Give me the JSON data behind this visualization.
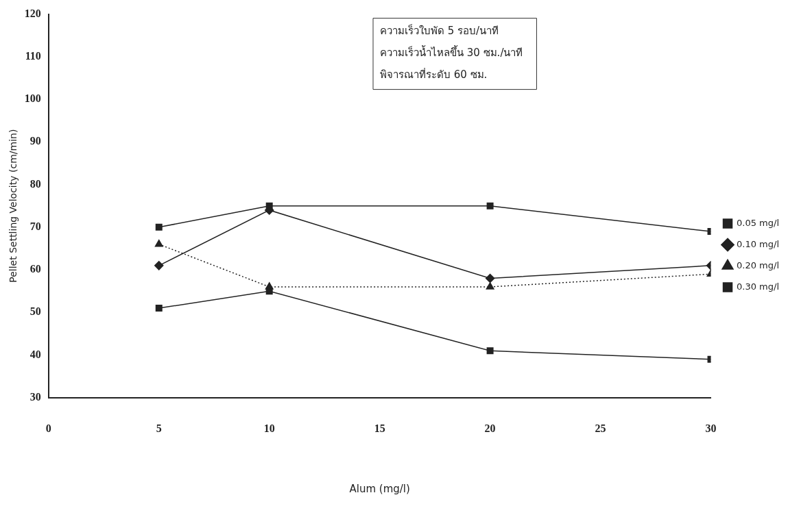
{
  "chart_data": {
    "type": "line",
    "xlabel": "Alum (mg/l)",
    "ylabel": "Pellet Settling Velocity (cm/min)",
    "x": [
      5,
      10,
      20,
      30
    ],
    "series": [
      {
        "name": "0.05 mg/l",
        "color": "#222222",
        "marker": "square",
        "line_style": "solid",
        "values": [
          51,
          55,
          41,
          39
        ]
      },
      {
        "name": "0.10 mg/l",
        "color": "#222222",
        "marker": "diamond",
        "line_style": "solid",
        "values": [
          61,
          74,
          58,
          61
        ]
      },
      {
        "name": "0.20 mg/l",
        "color": "#222222",
        "marker": "triangle",
        "line_style": "dotted",
        "values": [
          66,
          56,
          56,
          59
        ]
      },
      {
        "name": "0.30 mg/l",
        "color": "#222222",
        "marker": "square",
        "line_style": "solid",
        "values": [
          70,
          75,
          75,
          69
        ]
      }
    ],
    "xlim": [
      0,
      30
    ],
    "xticks": [
      0,
      5,
      10,
      15,
      20,
      25,
      30
    ],
    "ylim": [
      30,
      120
    ],
    "yticks": [
      30,
      40,
      50,
      60,
      70,
      80,
      90,
      100,
      110,
      120
    ],
    "grid": false,
    "legend": "right",
    "annotations": [
      "ความเร็วใบพัด 5 รอบ/นาที",
      "ความเร็วน้ำไหลขึ้น 30 ซม./นาที",
      "พิจารณาที่ระดับ 60 ซม."
    ]
  }
}
